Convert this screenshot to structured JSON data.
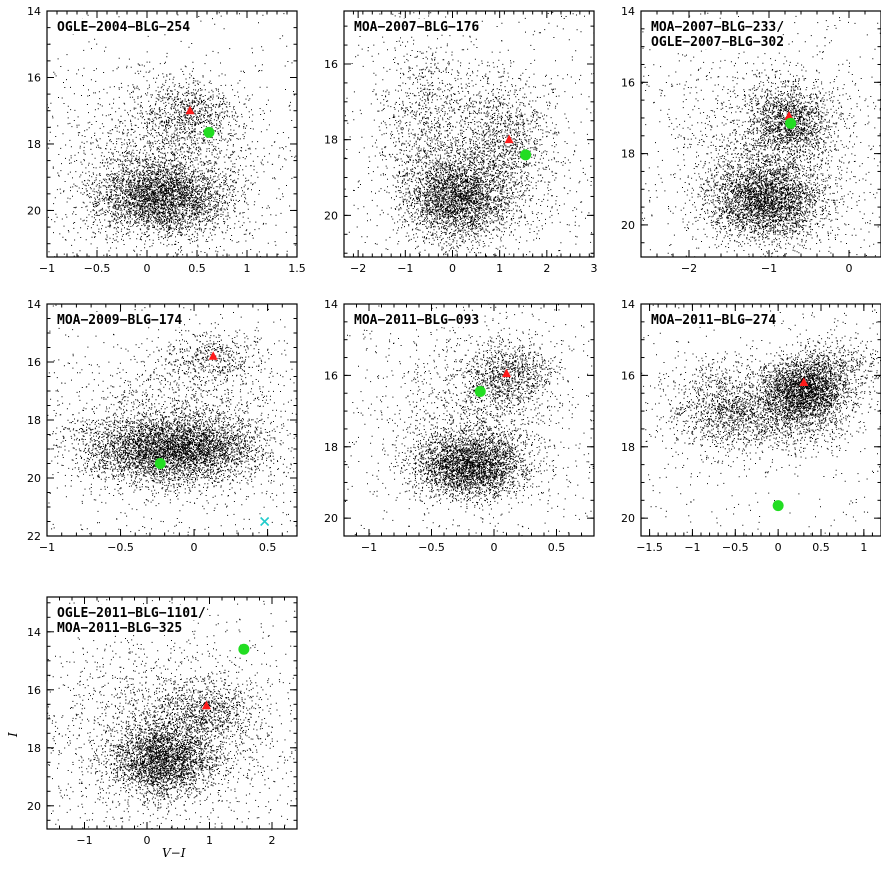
{
  "figure": {
    "xlabel": "V−I",
    "ylabel": "I"
  },
  "chart_data": [
    {
      "type": "scatter",
      "title_lines": [
        "OGLE−2004−BLG−254"
      ],
      "xlim": [
        -1,
        1.5
      ],
      "ylim": [
        21.4,
        14
      ],
      "xticks": [
        -1,
        -0.5,
        0,
        0.5,
        1,
        1.5
      ],
      "xticklabels": [
        "−1",
        "−0.5",
        "0",
        "0.5",
        "1",
        "1.5"
      ],
      "yticks": [
        14,
        16,
        18,
        20
      ],
      "yticklabels": [
        "14",
        "16",
        "18",
        "20"
      ],
      "markers": [
        {
          "kind": "red-clump-triangle",
          "x": 0.43,
          "y": 17.0
        },
        {
          "kind": "source-dot",
          "x": 0.62,
          "y": 17.65
        }
      ],
      "clusters": [
        {
          "x": 0.15,
          "y": 19.6,
          "sx": 0.33,
          "sy": 0.55,
          "n": 3200
        },
        {
          "x": 0.43,
          "y": 17.1,
          "sx": 0.28,
          "sy": 0.55,
          "n": 800
        },
        {
          "x": 0.1,
          "y": 18.6,
          "sx": 0.55,
          "sy": 1.3,
          "n": 1500
        }
      ]
    },
    {
      "type": "scatter",
      "title_lines": [
        "MOA−2007−BLG−176"
      ],
      "xlim": [
        -2.3,
        3
      ],
      "ylim": [
        21.1,
        14.6
      ],
      "xticks": [
        -2,
        -1,
        0,
        1,
        2,
        3
      ],
      "xticklabels": [
        "−2",
        "−1",
        "0",
        "1",
        "2",
        "3"
      ],
      "yticks": [
        16,
        18,
        20
      ],
      "yticklabels": [
        "16",
        "18",
        "20"
      ],
      "markers": [
        {
          "kind": "red-clump-triangle",
          "x": 1.2,
          "y": 18.0
        },
        {
          "kind": "source-dot",
          "x": 1.55,
          "y": 18.4
        }
      ],
      "clusters": [
        {
          "x": 0.1,
          "y": 19.5,
          "sx": 0.55,
          "sy": 0.55,
          "n": 2600
        },
        {
          "x": 1.1,
          "y": 17.8,
          "sx": 0.55,
          "sy": 0.8,
          "n": 900
        },
        {
          "x": -0.6,
          "y": 17.5,
          "sx": 0.45,
          "sy": 1.4,
          "n": 700
        },
        {
          "x": 0.4,
          "y": 18.8,
          "sx": 1.0,
          "sy": 1.3,
          "n": 1300
        }
      ]
    },
    {
      "type": "scatter",
      "title_lines": [
        "MOA−2007−BLG−233/",
        "OGLE−2007−BLG−302"
      ],
      "xlim": [
        -2.6,
        0.4
      ],
      "ylim": [
        20.9,
        14
      ],
      "xticks": [
        -2,
        -1,
        0
      ],
      "xticklabels": [
        "−2",
        "−1",
        "0"
      ],
      "yticks": [
        14,
        16,
        18,
        20
      ],
      "yticklabels": [
        "14",
        "16",
        "18",
        "20"
      ],
      "markers": [
        {
          "kind": "red-clump-triangle",
          "x": -0.75,
          "y": 16.95
        },
        {
          "kind": "source-dot",
          "x": -0.73,
          "y": 17.15
        }
      ],
      "clusters": [
        {
          "x": -1.05,
          "y": 19.3,
          "sx": 0.35,
          "sy": 0.55,
          "n": 3000
        },
        {
          "x": -0.75,
          "y": 17.1,
          "sx": 0.25,
          "sy": 0.5,
          "n": 1300
        },
        {
          "x": -1.0,
          "y": 18.0,
          "sx": 0.6,
          "sy": 1.4,
          "n": 1700
        }
      ]
    },
    {
      "type": "scatter",
      "title_lines": [
        "MOA−2009−BLG−174"
      ],
      "xlim": [
        -1,
        0.7
      ],
      "ylim": [
        22,
        14
      ],
      "xticks": [
        -1,
        -0.5,
        0,
        0.5
      ],
      "xticklabels": [
        "−1",
        "−0.5",
        "0",
        "0.5"
      ],
      "yticks": [
        14,
        16,
        18,
        20,
        22
      ],
      "yticklabels": [
        "14",
        "16",
        "18",
        "20",
        "22"
      ],
      "markers": [
        {
          "kind": "red-clump-triangle",
          "x": 0.13,
          "y": 15.8
        },
        {
          "kind": "source-dot",
          "x": -0.23,
          "y": 19.5
        },
        {
          "kind": "cross",
          "x": 0.48,
          "y": 21.5
        }
      ],
      "clusters": [
        {
          "x": -0.15,
          "y": 19.0,
          "sx": 0.3,
          "sy": 0.55,
          "n": 4200
        },
        {
          "x": 0.12,
          "y": 15.9,
          "sx": 0.18,
          "sy": 0.45,
          "n": 500
        },
        {
          "x": -0.15,
          "y": 18.3,
          "sx": 0.42,
          "sy": 1.3,
          "n": 1600
        }
      ]
    },
    {
      "type": "scatter",
      "title_lines": [
        "MOA−2011−BLG−093"
      ],
      "xlim": [
        -1.2,
        0.8
      ],
      "ylim": [
        20.5,
        14
      ],
      "xticks": [
        -1,
        -0.5,
        0,
        0.5
      ],
      "xticklabels": [
        "−1",
        "−0.5",
        "0",
        "0.5"
      ],
      "yticks": [
        14,
        16,
        18,
        20
      ],
      "yticklabels": [
        "14",
        "16",
        "18",
        "20"
      ],
      "markers": [
        {
          "kind": "red-clump-triangle",
          "x": 0.1,
          "y": 15.95
        },
        {
          "kind": "source-dot",
          "x": -0.11,
          "y": 16.45
        }
      ],
      "clusters": [
        {
          "x": -0.2,
          "y": 18.5,
          "sx": 0.22,
          "sy": 0.45,
          "n": 3000
        },
        {
          "x": 0.12,
          "y": 16.0,
          "sx": 0.18,
          "sy": 0.45,
          "n": 900
        },
        {
          "x": -0.15,
          "y": 17.2,
          "sx": 0.35,
          "sy": 1.3,
          "n": 1300
        }
      ]
    },
    {
      "type": "scatter",
      "title_lines": [
        "MOA−2011−BLG−274"
      ],
      "xlim": [
        -1.6,
        1.2
      ],
      "ylim": [
        20.5,
        14
      ],
      "xticks": [
        -1.5,
        -1,
        -0.5,
        0,
        0.5,
        1
      ],
      "xticklabels": [
        "−1.5",
        "−1",
        "−0.5",
        "0",
        "0.5",
        "1"
      ],
      "yticks": [
        14,
        16,
        18,
        20
      ],
      "yticklabels": [
        "14",
        "16",
        "18",
        "20"
      ],
      "markers": [
        {
          "kind": "red-clump-triangle",
          "x": 0.3,
          "y": 16.2
        },
        {
          "kind": "source-dot",
          "x": 0.0,
          "y": 19.65
        }
      ],
      "clusters": [
        {
          "x": 0.3,
          "y": 16.4,
          "sx": 0.25,
          "sy": 0.45,
          "n": 2600
        },
        {
          "x": -0.2,
          "y": 17.2,
          "sx": 0.5,
          "sy": 0.5,
          "n": 1400
        },
        {
          "x": -0.7,
          "y": 16.6,
          "sx": 0.3,
          "sy": 0.6,
          "n": 600
        },
        {
          "x": 0.7,
          "y": 15.8,
          "sx": 0.3,
          "sy": 0.5,
          "n": 500
        }
      ]
    },
    {
      "type": "scatter",
      "title_lines": [
        "OGLE−2011−BLG−1101/",
        "MOA−2011−BLG−325"
      ],
      "xlim": [
        -1.6,
        2.4
      ],
      "ylim": [
        20.8,
        12.8
      ],
      "xticks": [
        -1,
        0,
        1,
        2
      ],
      "xticklabels": [
        "−1",
        "0",
        "1",
        "2"
      ],
      "yticks": [
        14,
        16,
        18,
        20
      ],
      "yticklabels": [
        "14",
        "16",
        "18",
        "20"
      ],
      "markers": [
        {
          "kind": "red-clump-triangle",
          "x": 0.95,
          "y": 16.55
        },
        {
          "kind": "source-dot",
          "x": 1.55,
          "y": 14.6
        }
      ],
      "clusters": [
        {
          "x": 0.25,
          "y": 18.4,
          "sx": 0.4,
          "sy": 0.6,
          "n": 2600
        },
        {
          "x": 0.95,
          "y": 16.7,
          "sx": 0.4,
          "sy": 0.5,
          "n": 700
        },
        {
          "x": 0.3,
          "y": 17.5,
          "sx": 0.9,
          "sy": 1.5,
          "n": 1800
        }
      ]
    }
  ],
  "colors": {
    "points": "#000000",
    "red_clump": "#ff1a1a",
    "source": "#22dd22",
    "cross": "#22cccc"
  }
}
